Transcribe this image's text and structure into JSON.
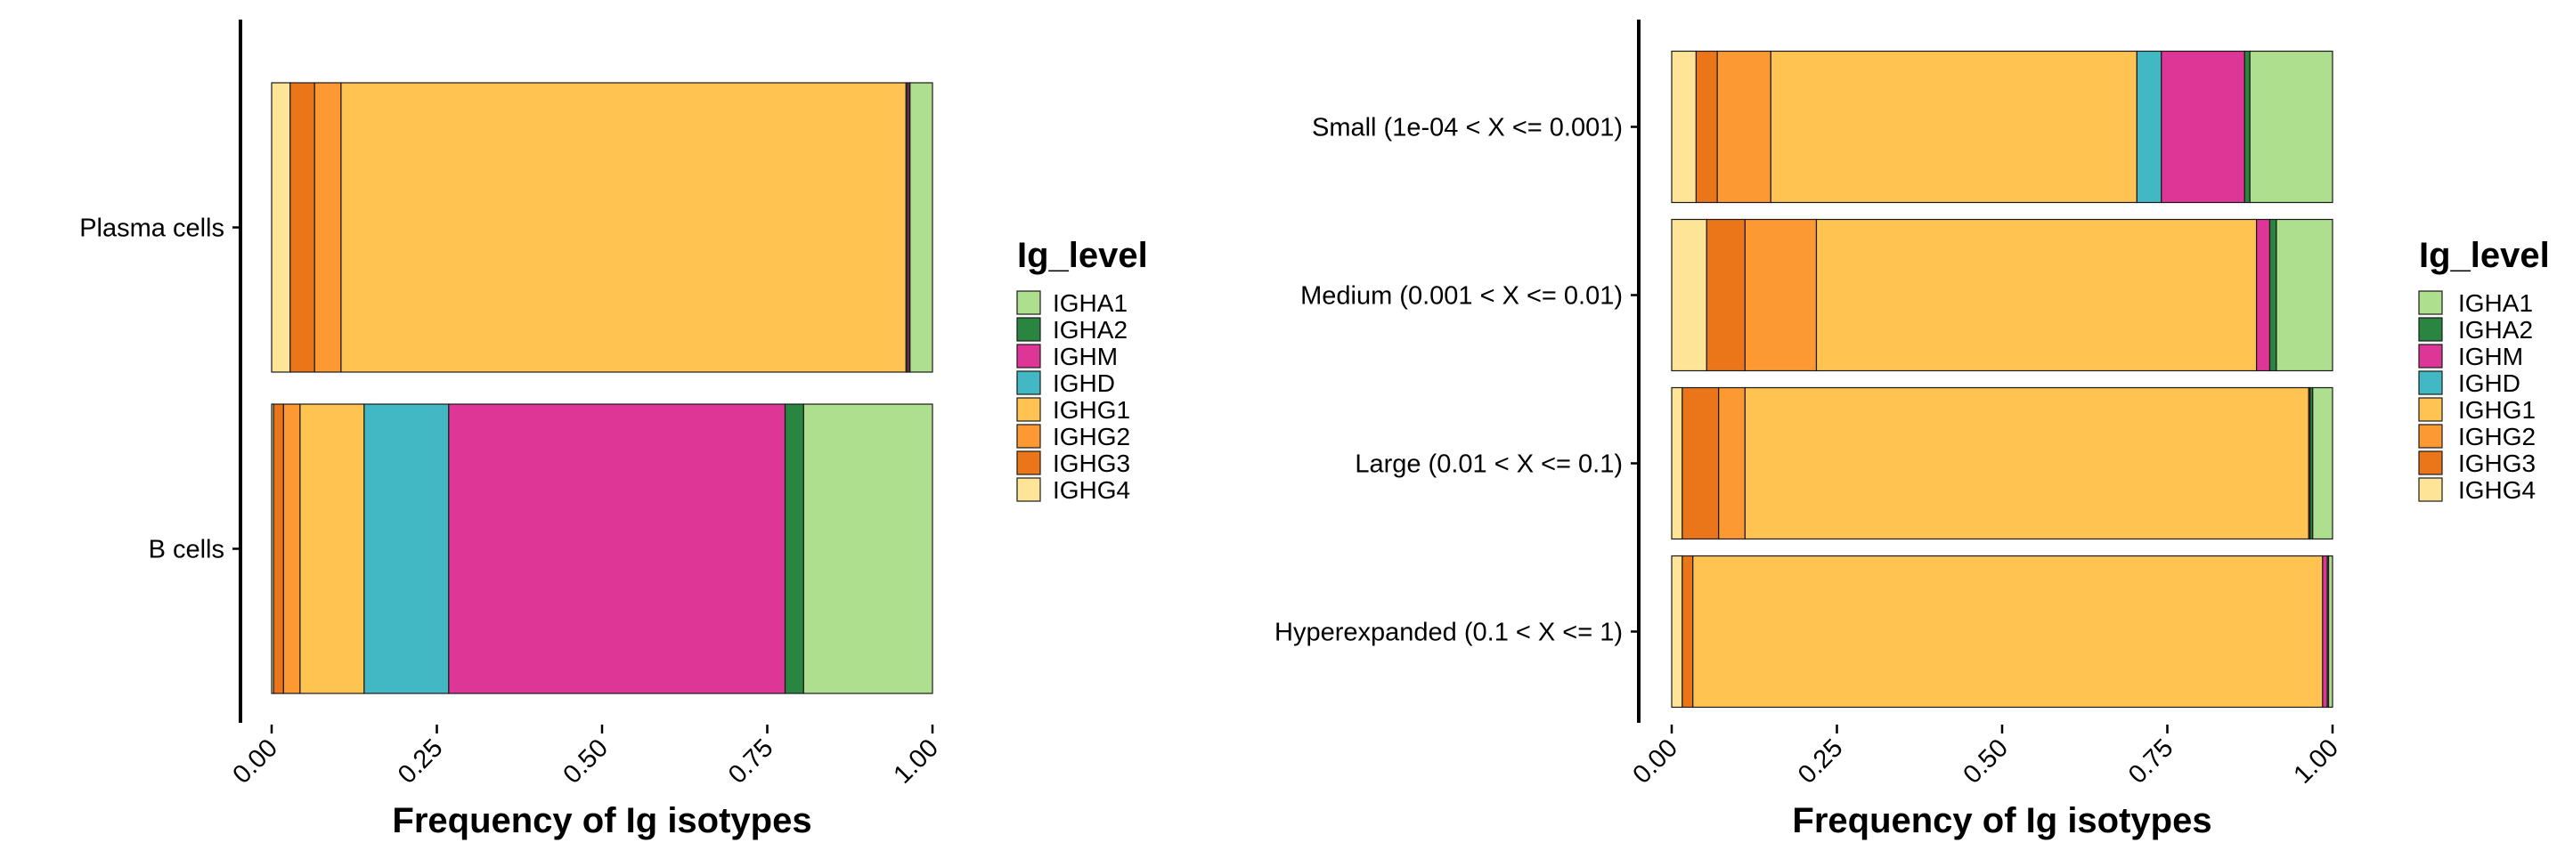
{
  "colors": {
    "IGHA1": "#ADDF8F",
    "IGHA2": "#2A8540",
    "IGHM": "#DE3696",
    "IGHD": "#42B8C5",
    "IGHG1": "#FEC351",
    "IGHG2": "#FD9932",
    "IGHG3": "#EB761A",
    "IGHG4": "#FDE496"
  },
  "chart_data": [
    {
      "type": "bar",
      "orientation": "horizontal",
      "stacked": true,
      "xlabel": "Frequency of Ig isotypes",
      "ylabel": "",
      "xlim": [
        0,
        1
      ],
      "xticks": [
        "0.00",
        "0.25",
        "0.50",
        "0.75",
        "1.00"
      ],
      "grid": false,
      "legend": {
        "title": "Ig_level",
        "position": "right",
        "entries": [
          "IGHA1",
          "IGHA2",
          "IGHM",
          "IGHD",
          "IGHG1",
          "IGHG2",
          "IGHG3",
          "IGHG4"
        ]
      },
      "stack_order": [
        "IGHG4",
        "IGHG3",
        "IGHG2",
        "IGHG1",
        "IGHD",
        "IGHM",
        "IGHA2",
        "IGHA1"
      ],
      "categories": [
        "Plasma cells",
        "B cells"
      ],
      "series": [
        {
          "name": "IGHG4",
          "values": [
            0.028,
            0.003
          ]
        },
        {
          "name": "IGHG3",
          "values": [
            0.037,
            0.015
          ]
        },
        {
          "name": "IGHG2",
          "values": [
            0.04,
            0.025
          ]
        },
        {
          "name": "IGHG1",
          "values": [
            0.855,
            0.097
          ]
        },
        {
          "name": "IGHD",
          "values": [
            0.002,
            0.128
          ]
        },
        {
          "name": "IGHM",
          "values": [
            0.003,
            0.509
          ]
        },
        {
          "name": "IGHA2",
          "values": [
            0.001,
            0.028
          ]
        },
        {
          "name": "IGHA1",
          "values": [
            0.034,
            0.195
          ]
        }
      ]
    },
    {
      "type": "bar",
      "orientation": "horizontal",
      "stacked": true,
      "xlabel": "Frequency of Ig isotypes",
      "ylabel": "",
      "xlim": [
        0,
        1
      ],
      "xticks": [
        "0.00",
        "0.25",
        "0.50",
        "0.75",
        "1.00"
      ],
      "grid": false,
      "legend": {
        "title": "Ig_level",
        "position": "right",
        "entries": [
          "IGHA1",
          "IGHA2",
          "IGHM",
          "IGHD",
          "IGHG1",
          "IGHG2",
          "IGHG3",
          "IGHG4"
        ]
      },
      "stack_order": [
        "IGHG4",
        "IGHG3",
        "IGHG2",
        "IGHG1",
        "IGHD",
        "IGHM",
        "IGHA2",
        "IGHA1"
      ],
      "categories": [
        "Small (1e-04 < X <= 0.001)",
        "Medium (0.001 < X <= 0.01)",
        "Large (0.01 < X <= 0.1)",
        "Hyperexpanded (0.1 < X <= 1)"
      ],
      "series": [
        {
          "name": "IGHG4",
          "values": [
            0.037,
            0.053,
            0.016,
            0.016
          ]
        },
        {
          "name": "IGHG3",
          "values": [
            0.032,
            0.058,
            0.055,
            0.016
          ]
        },
        {
          "name": "IGHG2",
          "values": [
            0.081,
            0.108,
            0.04,
            0.0
          ]
        },
        {
          "name": "IGHG1",
          "values": [
            0.554,
            0.666,
            0.853,
            0.953
          ]
        },
        {
          "name": "IGHD",
          "values": [
            0.037,
            0.0,
            0.0,
            0.0
          ]
        },
        {
          "name": "IGHM",
          "values": [
            0.126,
            0.02,
            0.002,
            0.007
          ]
        },
        {
          "name": "IGHA2",
          "values": [
            0.008,
            0.01,
            0.004,
            0.002
          ]
        },
        {
          "name": "IGHA1",
          "values": [
            0.125,
            0.085,
            0.03,
            0.006
          ]
        }
      ]
    }
  ]
}
